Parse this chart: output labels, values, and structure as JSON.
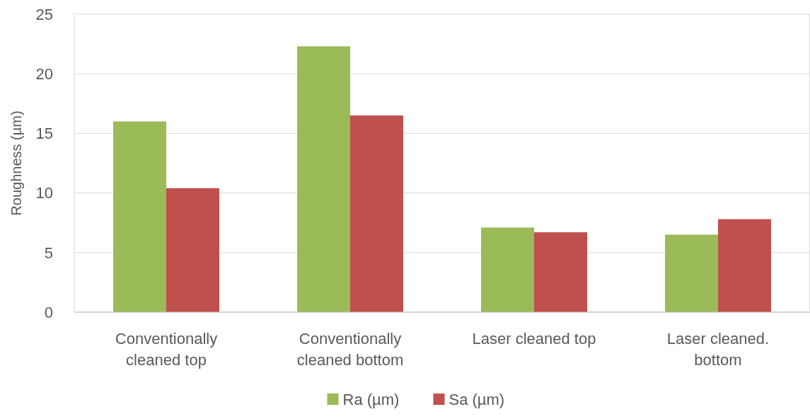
{
  "chart_data": {
    "type": "bar",
    "ylabel": "Roughness (µm)",
    "categories": [
      "Conventionally cleaned top",
      "Conventionally cleaned bottom",
      "Laser cleaned top",
      "Laser cleaned. bottom"
    ],
    "series": [
      {
        "name": "Ra (µm)",
        "color": "#9bbb59",
        "values": [
          16.0,
          22.3,
          7.1,
          6.5
        ]
      },
      {
        "name": "Sa (µm)",
        "color": "#c0504d",
        "values": [
          10.4,
          16.5,
          6.7,
          7.8
        ]
      }
    ],
    "ylim": [
      0,
      25
    ],
    "yticks": [
      0,
      5,
      10,
      15,
      20,
      25
    ],
    "grid": "y",
    "legend": "bottom"
  }
}
